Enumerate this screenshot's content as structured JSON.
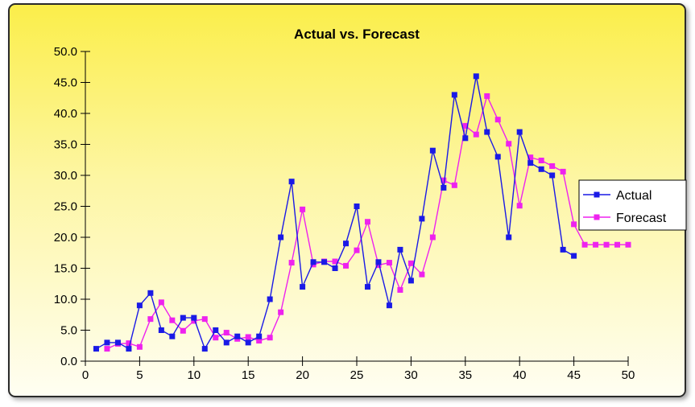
{
  "chart_data": {
    "type": "line",
    "title": "Actual vs. Forecast",
    "xlabel": "",
    "ylabel": "",
    "xlim": [
      0,
      50
    ],
    "ylim": [
      0,
      50
    ],
    "x_ticks": [
      "0",
      "5",
      "10",
      "15",
      "20",
      "25",
      "30",
      "35",
      "40",
      "45",
      "50"
    ],
    "y_ticks": [
      "0.0",
      "5.0",
      "10.0",
      "15.0",
      "20.0",
      "25.0",
      "30.0",
      "35.0",
      "40.0",
      "45.0",
      "50.0"
    ],
    "legend_position": "right",
    "grid": false,
    "series": [
      {
        "name": "Actual",
        "color": "#1a1ae6",
        "marker": "square",
        "points": [
          [
            1,
            2
          ],
          [
            2,
            3
          ],
          [
            3,
            3
          ],
          [
            4,
            2
          ],
          [
            5,
            9
          ],
          [
            6,
            11
          ],
          [
            7,
            5
          ],
          [
            8,
            4
          ],
          [
            9,
            7
          ],
          [
            10,
            7
          ],
          [
            11,
            2
          ],
          [
            12,
            5
          ],
          [
            13,
            3
          ],
          [
            14,
            4
          ],
          [
            15,
            3
          ],
          [
            16,
            4
          ],
          [
            17,
            10
          ],
          [
            18,
            20
          ],
          [
            19,
            29
          ],
          [
            20,
            12
          ],
          [
            21,
            16
          ],
          [
            22,
            16
          ],
          [
            23,
            15
          ],
          [
            24,
            19
          ],
          [
            25,
            25
          ],
          [
            26,
            12
          ],
          [
            27,
            16
          ],
          [
            28,
            9
          ],
          [
            29,
            18
          ],
          [
            30,
            13
          ],
          [
            31,
            23
          ],
          [
            32,
            34
          ],
          [
            33,
            28
          ],
          [
            34,
            43
          ],
          [
            35,
            36
          ],
          [
            36,
            46
          ],
          [
            37,
            37
          ],
          [
            38,
            33
          ],
          [
            39,
            20
          ],
          [
            40,
            37
          ],
          [
            41,
            32
          ],
          [
            42,
            31
          ],
          [
            43,
            30
          ],
          [
            44,
            18
          ],
          [
            45,
            17
          ]
        ]
      },
      {
        "name": "Forecast",
        "color": "#ee22ee",
        "marker": "square",
        "points": [
          [
            2,
            2
          ],
          [
            3,
            2.8
          ],
          [
            4,
            2.9
          ],
          [
            5,
            2.3
          ],
          [
            6,
            6.8
          ],
          [
            7,
            9.5
          ],
          [
            8,
            6.6
          ],
          [
            9,
            4.9
          ],
          [
            10,
            6.5
          ],
          [
            11,
            6.8
          ],
          [
            12,
            3.8
          ],
          [
            13,
            4.6
          ],
          [
            14,
            3.6
          ],
          [
            15,
            3.9
          ],
          [
            16,
            3.3
          ],
          [
            17,
            3.8
          ],
          [
            18,
            7.9
          ],
          [
            19,
            15.9
          ],
          [
            20,
            24.5
          ],
          [
            21,
            15.6
          ],
          [
            22,
            16.1
          ],
          [
            23,
            16.1
          ],
          [
            24,
            15.4
          ],
          [
            25,
            17.9
          ],
          [
            26,
            22.5
          ],
          [
            27,
            15.5
          ],
          [
            28,
            15.9
          ],
          [
            29,
            11.5
          ],
          [
            30,
            15.8
          ],
          [
            31,
            14.0
          ],
          [
            32,
            20.0
          ],
          [
            33,
            29.2
          ],
          [
            34,
            28.4
          ],
          [
            35,
            38.0
          ],
          [
            36,
            36.6
          ],
          [
            37,
            42.8
          ],
          [
            38,
            39.0
          ],
          [
            39,
            35.1
          ],
          [
            40,
            25.1
          ],
          [
            41,
            32.9
          ],
          [
            42,
            32.4
          ],
          [
            43,
            31.5
          ],
          [
            44,
            30.6
          ],
          [
            45,
            22.1
          ],
          [
            46,
            18.8
          ],
          [
            47,
            18.8
          ],
          [
            48,
            18.8
          ],
          [
            49,
            18.8
          ],
          [
            50,
            18.8
          ]
        ]
      }
    ]
  }
}
